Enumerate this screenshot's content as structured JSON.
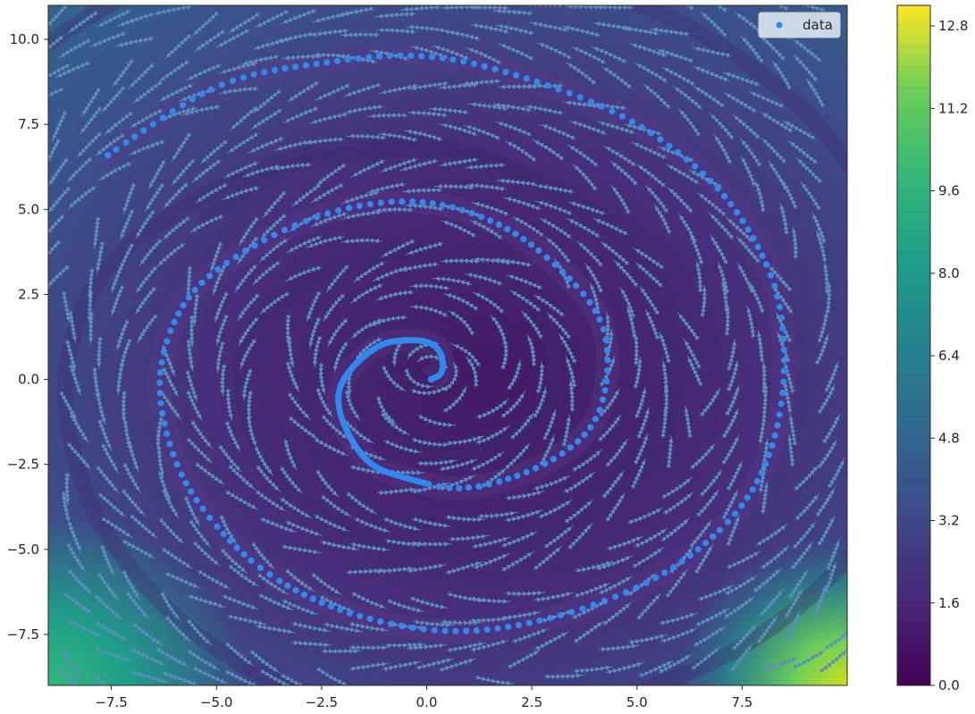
{
  "chart_data": {
    "type": "scatter",
    "title": "",
    "xlabel": "",
    "ylabel": "",
    "xlim": [
      -9,
      10
    ],
    "ylim": [
      -9,
      11
    ],
    "x_ticks": [
      -7.5,
      -5.0,
      -2.5,
      0.0,
      2.5,
      5.0,
      7.5
    ],
    "x_tick_labels": [
      "−7.5",
      "−5.0",
      "−2.5",
      "0.0",
      "2.5",
      "5.0",
      "7.5"
    ],
    "y_ticks": [
      -7.5,
      -5.0,
      -2.5,
      0.0,
      2.5,
      5.0,
      7.5,
      10.0
    ],
    "y_tick_labels": [
      "−7.5",
      "−5.0",
      "−2.5",
      "0.0",
      "2.5",
      "5.0",
      "7.5",
      "10.0"
    ],
    "grid": false,
    "legend": {
      "position": "top-right",
      "entries": [
        "data"
      ]
    },
    "series": [
      {
        "name": "data",
        "color": "#3388ee",
        "spiral": {
          "center": [
            0.1,
            0.3
          ],
          "points": [
            [
              0.1,
              0.0
            ],
            [
              0.35,
              0.2
            ],
            [
              0.35,
              0.7
            ],
            [
              0.1,
              1.05
            ],
            [
              -0.4,
              1.15
            ],
            [
              -1.1,
              1.0
            ],
            [
              -1.8,
              0.3
            ],
            [
              -2.1,
              -0.5
            ],
            [
              -1.9,
              -1.5
            ],
            [
              -1.3,
              -2.5
            ],
            [
              -0.2,
              -3.0
            ],
            [
              0.8,
              -3.2
            ],
            [
              2.0,
              -2.9
            ],
            [
              3.2,
              -2.2
            ],
            [
              4.0,
              -1.2
            ],
            [
              4.3,
              0.3
            ],
            [
              4.1,
              1.8
            ],
            [
              3.2,
              3.2
            ],
            [
              1.8,
              4.5
            ],
            [
              0.0,
              5.2
            ],
            [
              -2.0,
              5.0
            ],
            [
              -4.0,
              4.0
            ],
            [
              -5.6,
              2.5
            ],
            [
              -6.3,
              0.5
            ],
            [
              -6.2,
              -1.5
            ],
            [
              -5.5,
              -3.5
            ],
            [
              -4.0,
              -5.5
            ],
            [
              -2.0,
              -6.8
            ],
            [
              0.5,
              -7.4
            ],
            [
              3.0,
              -7.0
            ],
            [
              5.5,
              -5.8
            ],
            [
              7.3,
              -4.0
            ],
            [
              8.2,
              -2.0
            ],
            [
              8.5,
              0.5
            ],
            [
              8.2,
              3.0
            ],
            [
              7.0,
              5.5
            ],
            [
              5.0,
              7.5
            ],
            [
              2.5,
              8.8
            ],
            [
              0.0,
              9.5
            ],
            [
              -2.5,
              9.3
            ],
            [
              -5.0,
              8.6
            ],
            [
              -7.7,
              6.5
            ]
          ]
        }
      }
    ],
    "background": {
      "type": "filled-contour-with-streamlines",
      "colormap": "viridis",
      "colorbar_ticks": [
        0.0,
        1.6,
        3.2,
        4.8,
        6.4,
        8.0,
        9.6,
        11.2,
        12.8
      ],
      "colorbar_tick_labels": [
        "0.0",
        "1.6",
        "3.2",
        "4.8",
        "6.4",
        "8.0",
        "9.6",
        "11.2",
        "12.8"
      ],
      "colorbar_range": [
        0.0,
        13.2
      ],
      "streamline_color": "#5b8fbe"
    }
  }
}
